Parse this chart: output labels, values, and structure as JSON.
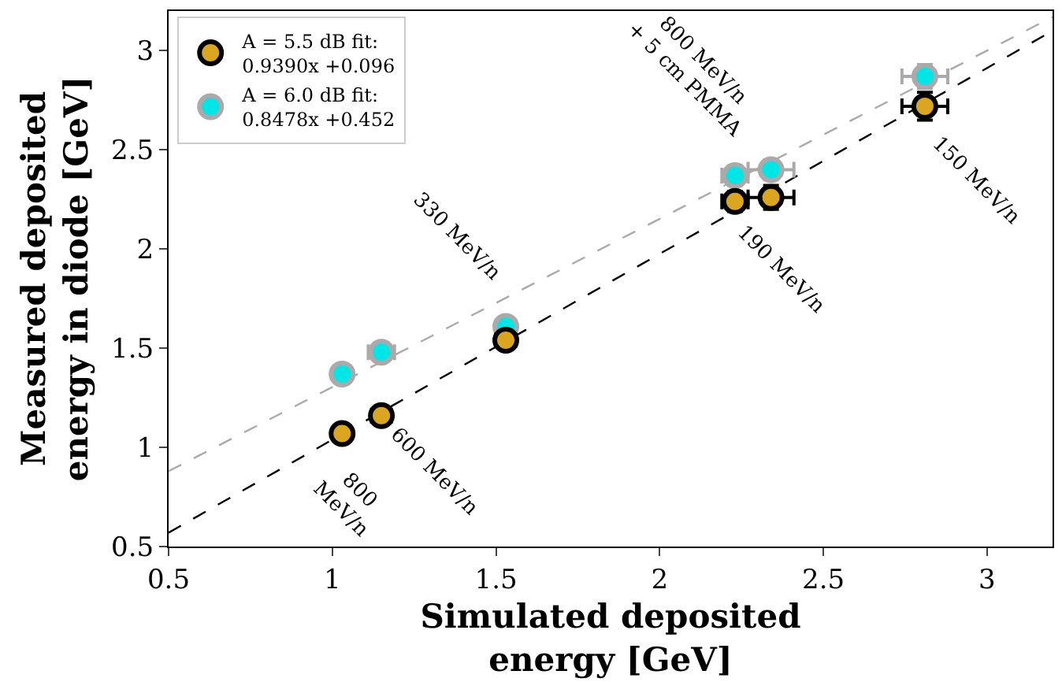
{
  "chart_data": {
    "type": "scatter",
    "xlabel": "Simulated deposited\nenergy [GeV]",
    "ylabel": "Measured deposited\nenergy in diode [GeV]",
    "xlim": [
      0.5,
      3.2
    ],
    "xticks": [
      0.5,
      1.0,
      1.5,
      2.0,
      2.5,
      3.0
    ],
    "ylim": [
      0.5,
      3.2
    ],
    "yticks": [
      0.5,
      1.0,
      1.5,
      2.0,
      2.5,
      3.0
    ],
    "grid": false,
    "legend": "top left",
    "marker": "circle",
    "series": [
      {
        "type": "line",
        "marker": "none",
        "color": "#000000",
        "line_style": "dashed",
        "x": [
          0.5,
          3.2
        ],
        "values": [
          0.57,
          3.1
        ]
      },
      {
        "type": "line",
        "marker": "none",
        "color": "#aaaaaa",
        "line_style": "dashed",
        "x": [
          0.5,
          3.2
        ],
        "values": [
          0.88,
          3.17
        ]
      },
      {
        "name": "A = 6.0 dB fit:\n0.8478x +0.452",
        "color": "#00e5e5",
        "x": [
          1.03,
          1.15,
          1.53,
          2.23,
          2.34,
          2.81
        ],
        "values": [
          1.37,
          1.48,
          1.61,
          2.37,
          2.4,
          2.87
        ],
        "errors": [
          null,
          null,
          0.04,
          0.05,
          0.05,
          0.06
        ],
        "xerrors": [
          null,
          0.04,
          0.03,
          0.04,
          0.07,
          0.07
        ]
      },
      {
        "name": "A = 5.5 dB fit:\n0.9390x +0.096",
        "color": "#daa520",
        "x": [
          1.03,
          1.15,
          1.53,
          2.23,
          2.34,
          2.81
        ],
        "values": [
          1.07,
          1.16,
          1.54,
          2.24,
          2.26,
          2.72
        ],
        "errors": [
          null,
          0.03,
          0.04,
          0.05,
          0.06,
          0.07
        ],
        "xerrors": [
          null,
          0.03,
          0.03,
          0.04,
          0.07,
          0.07
        ]
      }
    ],
    "annotations": [
      {
        "text": "800\nMeV/n",
        "x": 1.03,
        "y": 1.07
      },
      {
        "text": "600 MeV/n",
        "x": 1.15,
        "y": 1.16
      },
      {
        "text": "330 MeV/n",
        "x": 1.53,
        "y": 1.54
      },
      {
        "text": "190 MeV/n",
        "x": 2.23,
        "y": 2.24
      },
      {
        "text": "800 MeV/n\n+ 5 cm PMMA",
        "x": 2.34,
        "y": 2.4
      },
      {
        "text": "150 MeV/n",
        "x": 2.81,
        "y": 2.72
      }
    ]
  }
}
